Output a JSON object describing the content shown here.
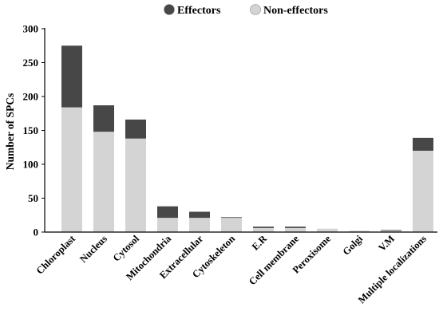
{
  "chart_data": {
    "type": "bar",
    "stacked": true,
    "ylabel": "Number of SPCs",
    "ylim": [
      0,
      300
    ],
    "yticks": [
      0,
      50,
      100,
      150,
      200,
      250,
      300
    ],
    "grid": false,
    "legend_position": "top-center",
    "categories": [
      "Chloroplast",
      "Nucleus",
      "Cytosol",
      "Mitochondria",
      "Extracellular",
      "Cytoskeleton",
      "E.R",
      "Cell membrane",
      "Peroxisome",
      "Golgi",
      "V.M",
      "Multiple localizations"
    ],
    "series": [
      {
        "name": "Non-effectors",
        "color": "#d4d4d4",
        "values": [
          184,
          148,
          138,
          21,
          21,
          21,
          6,
          6,
          5,
          2,
          2,
          120
        ]
      },
      {
        "name": "Effectors",
        "color": "#474747",
        "values": [
          91,
          39,
          28,
          17,
          9,
          1,
          2,
          2,
          0,
          0,
          1,
          19
        ]
      }
    ]
  }
}
